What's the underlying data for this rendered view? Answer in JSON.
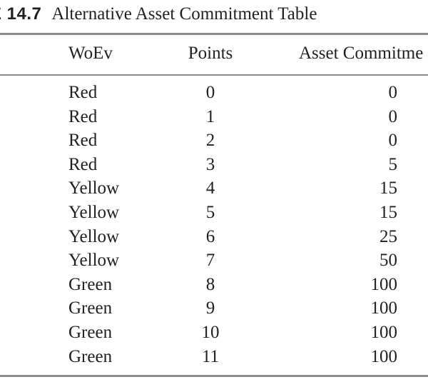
{
  "table": {
    "label": "E 14.7",
    "title": "Alternative Asset Commitment Table",
    "headers": {
      "woev": "WoEv",
      "points": "Points",
      "asset": "Asset Commitme"
    },
    "rows": [
      {
        "woev": "Red",
        "points": "0",
        "asset": "0"
      },
      {
        "woev": "Red",
        "points": "1",
        "asset": "0"
      },
      {
        "woev": "Red",
        "points": "2",
        "asset": "0"
      },
      {
        "woev": "Red",
        "points": "3",
        "asset": "5"
      },
      {
        "woev": "Yellow",
        "points": "4",
        "asset": "15"
      },
      {
        "woev": "Yellow",
        "points": "5",
        "asset": "15"
      },
      {
        "woev": "Yellow",
        "points": "6",
        "asset": "25"
      },
      {
        "woev": "Yellow",
        "points": "7",
        "asset": "50"
      },
      {
        "woev": "Green",
        "points": "8",
        "asset": "100"
      },
      {
        "woev": "Green",
        "points": "9",
        "asset": "100"
      },
      {
        "woev": "Green",
        "points": "10",
        "asset": "100"
      },
      {
        "woev": "Green",
        "points": "11",
        "asset": "100"
      }
    ]
  }
}
